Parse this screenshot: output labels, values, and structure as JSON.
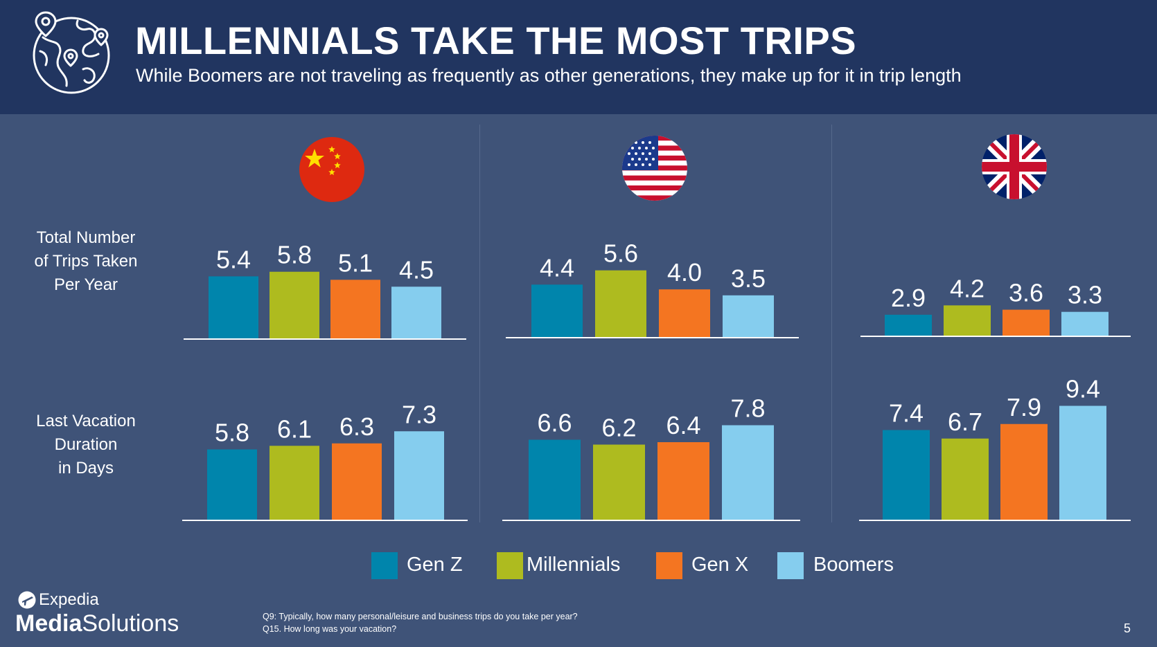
{
  "header": {
    "title": "MILLENNIALS TAKE THE MOST TRIPS",
    "subtitle": "While Boomers are not traveling as frequently as other generations, they make up for it in trip length",
    "icon": "globe-with-pins-icon"
  },
  "row_labels": {
    "trips": [
      "Total Number",
      "of Trips Taken",
      "Per Year"
    ],
    "duration": [
      "Last Vacation",
      "Duration",
      "in Days"
    ]
  },
  "flags": [
    "china-flag-icon",
    "usa-flag-icon",
    "uk-flag-icon"
  ],
  "legend": [
    {
      "label": "Gen Z",
      "color": "#0085ac"
    },
    {
      "label": "Millennials",
      "color": "#aebb1f"
    },
    {
      "label": "Gen X",
      "color": "#f47521"
    },
    {
      "label": "Boomers",
      "color": "#85cdee"
    }
  ],
  "chart_data": [
    {
      "type": "bar",
      "categories": [
        "Gen Z",
        "Millennials",
        "Gen X",
        "Boomers"
      ],
      "values": [
        5.4,
        5.8,
        5.1,
        4.5
      ]
    },
    {
      "type": "bar",
      "categories": [
        "Gen Z",
        "Millennials",
        "Gen X",
        "Boomers"
      ],
      "values": [
        4.4,
        5.6,
        4.0,
        3.5
      ]
    },
    {
      "type": "bar",
      "categories": [
        "Gen Z",
        "Millennials",
        "Gen X",
        "Boomers"
      ],
      "values": [
        2.9,
        4.2,
        3.6,
        3.3
      ]
    },
    {
      "type": "bar",
      "categories": [
        "Gen Z",
        "Millennials",
        "Gen X",
        "Boomers"
      ],
      "values": [
        5.8,
        6.1,
        6.3,
        7.3
      ]
    },
    {
      "type": "bar",
      "categories": [
        "Gen Z",
        "Millennials",
        "Gen X",
        "Boomers"
      ],
      "values": [
        6.6,
        6.2,
        6.4,
        7.8
      ]
    },
    {
      "type": "bar",
      "categories": [
        "Gen Z",
        "Millennials",
        "Gen X",
        "Boomers"
      ],
      "values": [
        7.4,
        6.7,
        7.9,
        9.4
      ]
    }
  ],
  "logo": {
    "top": "Expedia",
    "bottom_bold": "Media",
    "bottom_light": "Solutions"
  },
  "footnotes": [
    "Q9: Typically, how many personal/leisure and business trips do you take per year?",
    "Q15. How long was your vacation?"
  ],
  "page_number": "5"
}
